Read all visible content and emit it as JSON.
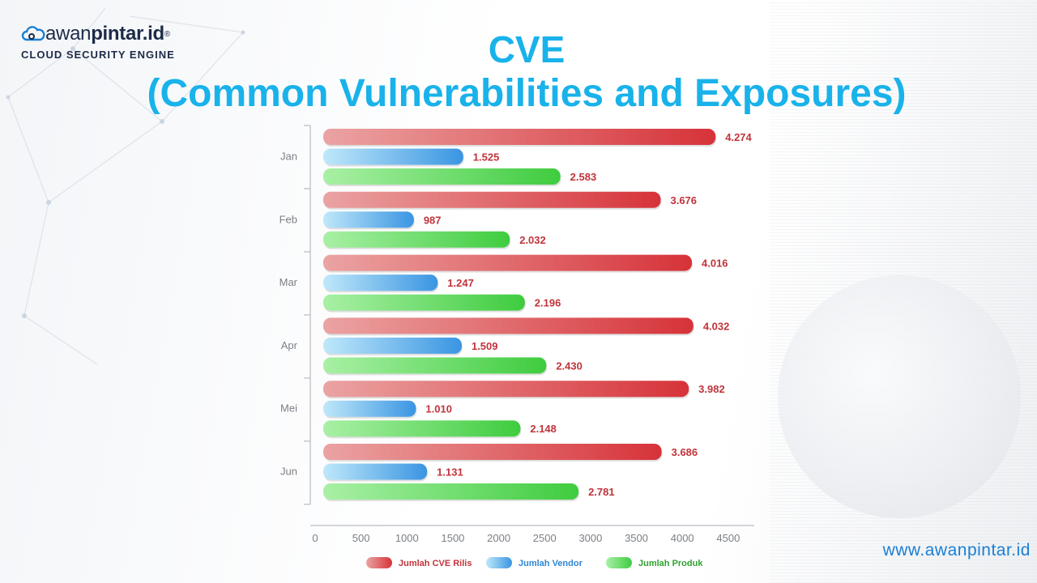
{
  "brand": {
    "name_light": "awan",
    "name_bold": "pintar.id",
    "registered": "®",
    "tagline": "CLOUD SECURITY ENGINE"
  },
  "title": {
    "line1": "CVE",
    "line2": "(Common Vulnerabilities and Exposures)"
  },
  "website": "www.awanpintar.id",
  "chart_data": {
    "type": "bar",
    "orientation": "horizontal",
    "categories": [
      "Jan",
      "Feb",
      "Mar",
      "Apr",
      "Mei",
      "Jun"
    ],
    "series": [
      {
        "name": "Jumlah CVE Rilis",
        "values": [
          4274,
          3676,
          4016,
          4032,
          3982,
          3686
        ],
        "labels": [
          "4.274",
          "3.676",
          "4.016",
          "4.032",
          "3.982",
          "3.686"
        ],
        "color": "#d83a3f",
        "label_color": "#c0343b"
      },
      {
        "name": "Jumlah Vendor",
        "values": [
          1525,
          987,
          1247,
          1509,
          1010,
          1131
        ],
        "labels": [
          "1.525",
          "987",
          "1.247",
          "1.509",
          "1.010",
          "1.131"
        ],
        "color": "#3b9be6",
        "label_color": "#c0343b"
      },
      {
        "name": "Jumlah Produk",
        "values": [
          2583,
          2032,
          2196,
          2430,
          2148,
          2781
        ],
        "labels": [
          "2.583",
          "2.032",
          "2.196",
          "2.430",
          "2.148",
          "2.781"
        ],
        "color": "#4fd24f",
        "label_color": "#c0343b"
      }
    ],
    "xticks": [
      "0",
      "500",
      "1000",
      "1500",
      "2000",
      "2500",
      "3000",
      "3500",
      "4000",
      "4500"
    ],
    "xlim": [
      0,
      4600
    ],
    "grid": false,
    "legend_position": "bottom",
    "legend_colors": {
      "Jumlah CVE Rilis": "#c0343b",
      "Jumlah Vendor": "#2f86d4",
      "Jumlah Produk": "#2ea32e"
    }
  }
}
